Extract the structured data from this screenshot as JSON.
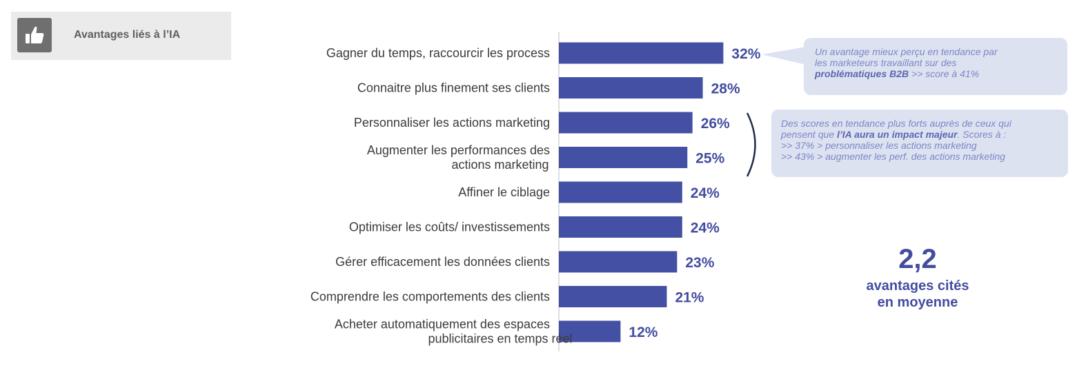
{
  "header": {
    "title": "Avantages liés à l’IA",
    "icon": "thumbs-up-icon"
  },
  "chart_data": {
    "type": "bar",
    "orientation": "horizontal",
    "categories": [
      "Gagner du temps, raccourcir les process",
      "Connaitre plus finement ses clients",
      "Personnaliser les actions marketing",
      "Augmenter les performances des\nactions marketing",
      "Affiner le ciblage",
      "Optimiser les coûts/ investissements",
      "Gérer efficacement les données clients",
      "Comprendre les comportements des clients",
      "Acheter automatiquement des espaces\npublicitaires en temps réel"
    ],
    "values": [
      32,
      28,
      26,
      25,
      24,
      24,
      23,
      21,
      12
    ],
    "value_labels": [
      "32%",
      "28%",
      "26%",
      "25%",
      "24%",
      "24%",
      "23%",
      "21%",
      "12%"
    ],
    "xlim": [
      0,
      40
    ],
    "grid": false,
    "bar_color": "#4450a3",
    "label_color": "#434c9f"
  },
  "callouts": {
    "first": {
      "line1": "Un avantage mieux perçu en tendance par",
      "line2": "les marketeurs travaillant sur des",
      "bold": "problématiques B2B",
      "tail": " >> score à 41%"
    },
    "second": {
      "line1": "Des scores en tendance plus forts auprès de ceux qui",
      "prefix": "pensent que ",
      "bold": "l’IA aura un impact majeur",
      "suffix": ". Scores à :",
      "line3": ">> 37% > personnaliser les actions marketing",
      "line4": ">> 43% > augmenter les perf. des actions marketing"
    }
  },
  "summary": {
    "value": "2,2",
    "caption_line1": "avantages cités",
    "caption_line2": "en moyenne"
  },
  "colors": {
    "bar": "#4450a3",
    "accent_text": "#434c9f",
    "callout_bg": "#dde2f1",
    "callout_text": "#7b86c6",
    "tag_bg": "#ebebeb"
  }
}
